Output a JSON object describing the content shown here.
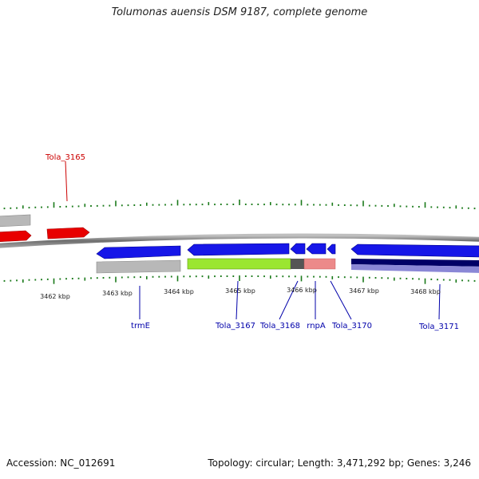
{
  "title": "Tolumonas auensis DSM 9187, complete genome",
  "footer": {
    "accession": "Accession: NC_012691",
    "topology": "Topology: circular; Length: 3,471,292 bp; Genes: 3,246"
  },
  "colors": {
    "forward_gene": "#e80000",
    "reverse_gene": "#1616e8",
    "backbone": "#808080",
    "tick": "#1a7a1a",
    "forward_label": "#cc0000",
    "reverse_label": "#0000aa",
    "cds_gray": "#b0b0b0",
    "cds_green": "#9be630",
    "cds_darkgray": "#555555",
    "cds_pink": "#ec8a8a",
    "cds_navy": "#000066",
    "cds_slate": "#8a87d6"
  },
  "kbp_labels": [
    "3462 kbp",
    "3463 kbp",
    "3464 kbp",
    "3465 kbp",
    "3466 kbp",
    "3467 kbp",
    "3468 kbp"
  ],
  "gene_labels": {
    "tola_3165": "Tola_3165",
    "trme": "trmE",
    "tola_3167": "Tola_3167",
    "tola_3168": "Tola_3168",
    "rnpa": "rnpA",
    "tola_3170": "Tola_3170",
    "tola_3171": "Tola_3171"
  }
}
